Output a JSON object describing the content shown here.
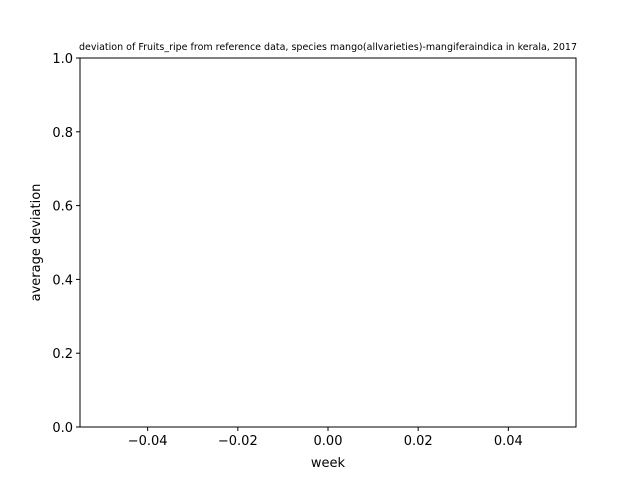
{
  "chart_data": {
    "type": "line",
    "title": "deviation of Fruits_ripe from reference data, species mango(allvarieties)-mangiferaindica in kerala, 2017",
    "xlabel": "week",
    "ylabel": "average deviation",
    "xlim": [
      -0.055,
      0.055
    ],
    "ylim": [
      0.0,
      1.0
    ],
    "xticks": [
      -0.04,
      -0.02,
      0.0,
      0.02,
      0.04
    ],
    "xtick_labels": [
      "−0.04",
      "−0.02",
      "0.00",
      "0.02",
      "0.04"
    ],
    "yticks": [
      0.0,
      0.2,
      0.4,
      0.6,
      0.8,
      1.0
    ],
    "ytick_labels": [
      "0.0",
      "0.2",
      "0.4",
      "0.6",
      "0.8",
      "1.0"
    ],
    "series": [],
    "grid": false,
    "legend": "none",
    "colors": {
      "axes": "#000000",
      "background": "#ffffff"
    }
  }
}
